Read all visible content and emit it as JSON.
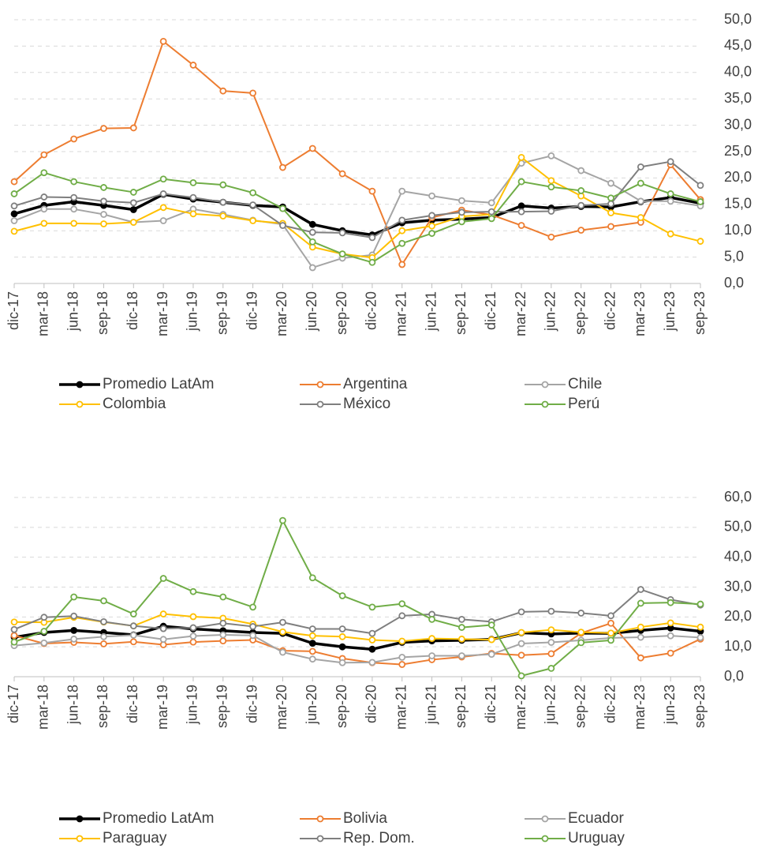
{
  "chart_data": [
    {
      "type": "line",
      "categories": [
        "dic-17",
        "mar-18",
        "jun-18",
        "sep-18",
        "dic-18",
        "mar-19",
        "jun-19",
        "sep-19",
        "dic-19",
        "mar-20",
        "jun-20",
        "sep-20",
        "dic-20",
        "mar-21",
        "jun-21",
        "sep-21",
        "dic-21",
        "mar-22",
        "jun-22",
        "sep-22",
        "dic-22",
        "mar-23",
        "jun-23",
        "sep-23"
      ],
      "ylim": [
        0,
        50
      ],
      "yticks": [
        {
          "value": 0,
          "label": "0,0"
        },
        {
          "value": 5,
          "label": "5,0"
        },
        {
          "value": 10,
          "label": "10,0"
        },
        {
          "value": 15,
          "label": "15,0"
        },
        {
          "value": 20,
          "label": "20,0"
        },
        {
          "value": 25,
          "label": "25,0"
        },
        {
          "value": 30,
          "label": "30,0"
        },
        {
          "value": 35,
          "label": "35,0"
        },
        {
          "value": 40,
          "label": "40,0"
        },
        {
          "value": 45,
          "label": "45,0"
        },
        {
          "value": 50,
          "label": "50,0"
        }
      ],
      "grid": true,
      "legend": "bottom",
      "series": [
        {
          "name": "Promedio LatAm",
          "color": "#000000",
          "values": [
            13.2,
            14.8,
            15.5,
            14.8,
            14.0,
            16.9,
            16.0,
            15.4,
            14.8,
            14.5,
            11.2,
            10.0,
            9.2,
            11.5,
            12.0,
            12.2,
            12.5,
            14.7,
            14.3,
            14.6,
            14.5,
            15.5,
            16.3,
            15.2
          ]
        },
        {
          "name": "Argentina",
          "color": "#ed7d31",
          "values": [
            19.3,
            24.4,
            27.4,
            29.4,
            29.5,
            45.9,
            41.4,
            36.5,
            36.1,
            22.0,
            25.6,
            20.8,
            17.5,
            3.6,
            12.5,
            13.9,
            13.0,
            11.0,
            8.8,
            10.1,
            10.8,
            11.6,
            22.5,
            15.9
          ]
        },
        {
          "name": "Chile",
          "color": "#a5a5a5",
          "values": [
            11.9,
            14.1,
            14.1,
            13.1,
            11.6,
            11.9,
            14.1,
            13.1,
            12.0,
            11.2,
            3.0,
            4.8,
            5.4,
            17.5,
            16.6,
            15.7,
            15.3,
            22.8,
            24.2,
            21.4,
            19.0,
            15.6,
            15.6,
            14.7
          ]
        },
        {
          "name": "Colombia",
          "color": "#ffc000",
          "values": [
            9.9,
            11.4,
            11.4,
            11.3,
            11.6,
            14.4,
            13.2,
            12.8,
            11.9,
            11.4,
            6.9,
            5.6,
            4.9,
            10.0,
            10.9,
            12.7,
            13.1,
            23.9,
            19.5,
            16.6,
            13.4,
            12.5,
            9.4,
            8.0
          ]
        },
        {
          "name": "México",
          "color": "#7f7f7f",
          "values": [
            14.7,
            16.4,
            16.3,
            15.6,
            15.3,
            17.0,
            16.3,
            15.4,
            14.9,
            11.0,
            9.7,
            9.6,
            8.7,
            12.0,
            12.9,
            13.5,
            13.6,
            13.6,
            13.7,
            14.8,
            15.1,
            22.1,
            23.1,
            18.6
          ]
        },
        {
          "name": "Perú",
          "color": "#70ad47",
          "values": [
            17.0,
            21.0,
            19.3,
            18.2,
            17.3,
            19.8,
            19.1,
            18.7,
            17.2,
            14.2,
            7.9,
            5.6,
            4.0,
            7.6,
            9.5,
            11.7,
            12.3,
            19.3,
            18.3,
            17.6,
            16.2,
            19.0,
            17.0,
            15.5
          ]
        }
      ]
    },
    {
      "type": "line",
      "categories": [
        "dic-17",
        "mar-18",
        "jun-18",
        "sep-18",
        "dic-18",
        "mar-19",
        "jun-19",
        "sep-19",
        "dic-19",
        "mar-20",
        "jun-20",
        "sep-20",
        "dic-20",
        "mar-21",
        "jun-21",
        "sep-21",
        "dic-21",
        "mar-22",
        "jun-22",
        "sep-22",
        "dic-22",
        "mar-23",
        "jun-23",
        "sep-23"
      ],
      "ylim": [
        0,
        60
      ],
      "yticks": [
        {
          "value": 0,
          "label": "0,0"
        },
        {
          "value": 10,
          "label": "10,0"
        },
        {
          "value": 20,
          "label": "20,0"
        },
        {
          "value": 30,
          "label": "30,0"
        },
        {
          "value": 40,
          "label": "40,0"
        },
        {
          "value": 50,
          "label": "50,0"
        },
        {
          "value": 60,
          "label": "60,0"
        }
      ],
      "grid": true,
      "legend": "bottom",
      "series": [
        {
          "name": "Promedio LatAm",
          "color": "#000000",
          "values": [
            13.2,
            14.8,
            15.5,
            14.8,
            14.0,
            16.9,
            16.0,
            15.4,
            14.8,
            14.5,
            11.2,
            10.0,
            9.2,
            11.5,
            12.0,
            12.2,
            12.5,
            14.7,
            14.3,
            14.6,
            14.5,
            15.5,
            16.3,
            15.2
          ]
        },
        {
          "name": "Bolivia",
          "color": "#ed7d31",
          "values": [
            13.8,
            11.1,
            11.5,
            11.0,
            11.7,
            10.7,
            11.6,
            12.0,
            12.3,
            8.7,
            8.5,
            6.1,
            4.7,
            4.1,
            5.7,
            6.6,
            7.8,
            7.2,
            7.7,
            14.6,
            17.9,
            6.3,
            7.9,
            12.6
          ]
        },
        {
          "name": "Ecuador",
          "color": "#a5a5a5",
          "values": [
            10.4,
            11.3,
            12.6,
            13.4,
            13.9,
            12.5,
            13.6,
            14.0,
            13.8,
            8.2,
            5.9,
            4.7,
            4.8,
            6.5,
            7.0,
            7.0,
            7.5,
            11.1,
            11.5,
            12.2,
            13.0,
            13.2,
            13.7,
            13.1
          ]
        },
        {
          "name": "Paraguay",
          "color": "#ffc000",
          "values": [
            18.3,
            18.2,
            19.9,
            18.3,
            17.0,
            21.0,
            20.1,
            19.6,
            17.6,
            15.0,
            13.7,
            13.4,
            12.3,
            11.9,
            12.8,
            12.6,
            12.4,
            14.8,
            15.7,
            14.9,
            14.6,
            16.6,
            18.0,
            16.6
          ]
        },
        {
          "name": "Rep. Dom.",
          "color": "#7f7f7f",
          "values": [
            15.8,
            19.9,
            20.3,
            18.4,
            17.0,
            16.1,
            16.4,
            17.9,
            16.8,
            18.2,
            16.0,
            16.0,
            14.5,
            20.4,
            20.9,
            19.2,
            18.4,
            21.7,
            21.9,
            21.3,
            20.4,
            29.2,
            25.8,
            24.0
          ]
        },
        {
          "name": "Uruguay",
          "color": "#70ad47",
          "values": [
            11.6,
            15.2,
            26.7,
            25.4,
            21.0,
            32.9,
            28.5,
            26.7,
            23.3,
            52.3,
            33.1,
            27.1,
            23.3,
            24.4,
            19.2,
            16.5,
            17.3,
            0.3,
            2.8,
            11.4,
            12.2,
            24.6,
            24.8,
            24.3
          ]
        }
      ]
    }
  ]
}
